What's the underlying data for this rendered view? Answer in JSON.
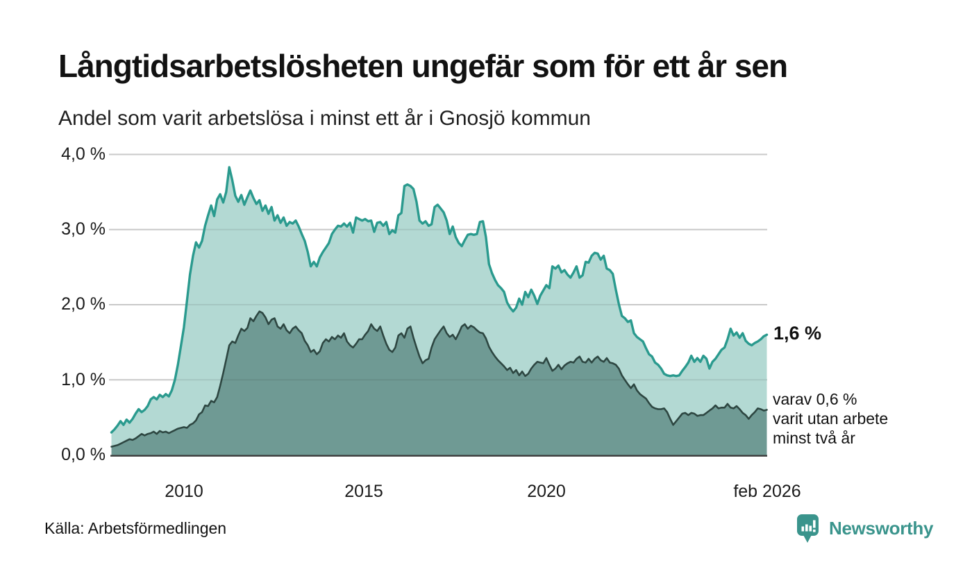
{
  "header": {
    "title": "Långtidsarbetslösheten ungefär som för ett år sen",
    "subtitle": "Andel som varit arbetslösa i minst ett år i Gnosjö kommun"
  },
  "chart_data": {
    "type": "area",
    "title": "Långtidsarbetslösheten ungefär som för ett år sen",
    "subtitle": "Andel som varit arbetslösa i minst ett år i Gnosjö kommun",
    "unit": "%",
    "x_start_year": 2008.0,
    "x_step_years": 0.08333,
    "x_ticks": [
      "2010",
      "2015",
      "2020",
      "feb 2026"
    ],
    "y_ticks": [
      "4,0 %",
      "3,0 %",
      "2,0 %",
      "1,0 %",
      "0,0 %"
    ],
    "ylim": [
      0,
      4
    ],
    "grid": "horizontal",
    "legend_position": "none",
    "series": [
      {
        "name": "Andel arbetslösa minst ett år",
        "line_color": "#2a9a8e",
        "fill_color": "#b3d9d3",
        "last_value": 1.6,
        "values": [
          0.3,
          0.34,
          0.39,
          0.45,
          0.4,
          0.47,
          0.43,
          0.48,
          0.55,
          0.61,
          0.57,
          0.6,
          0.65,
          0.74,
          0.77,
          0.74,
          0.8,
          0.77,
          0.81,
          0.78,
          0.86,
          1.0,
          1.2,
          1.45,
          1.7,
          2.05,
          2.4,
          2.65,
          2.83,
          2.76,
          2.85,
          3.05,
          3.19,
          3.32,
          3.18,
          3.4,
          3.47,
          3.36,
          3.5,
          3.83,
          3.66,
          3.45,
          3.37,
          3.46,
          3.33,
          3.43,
          3.52,
          3.42,
          3.34,
          3.39,
          3.25,
          3.32,
          3.21,
          3.3,
          3.12,
          3.19,
          3.09,
          3.16,
          3.05,
          3.1,
          3.08,
          3.12,
          3.04,
          2.94,
          2.85,
          2.7,
          2.51,
          2.57,
          2.51,
          2.63,
          2.7,
          2.76,
          2.82,
          2.94,
          3.0,
          3.05,
          3.04,
          3.08,
          3.04,
          3.09,
          2.96,
          3.16,
          3.14,
          3.12,
          3.14,
          3.11,
          3.12,
          2.97,
          3.09,
          3.1,
          3.05,
          3.1,
          2.94,
          2.99,
          2.96,
          3.19,
          3.22,
          3.58,
          3.6,
          3.58,
          3.54,
          3.37,
          3.12,
          3.08,
          3.11,
          3.05,
          3.07,
          3.3,
          3.33,
          3.28,
          3.23,
          3.12,
          2.94,
          3.04,
          2.9,
          2.82,
          2.78,
          2.86,
          2.93,
          2.94,
          2.93,
          2.94,
          3.1,
          3.11,
          2.9,
          2.54,
          2.42,
          2.33,
          2.26,
          2.22,
          2.17,
          2.03,
          1.96,
          1.91,
          1.96,
          2.08,
          2.0,
          2.17,
          2.1,
          2.2,
          2.12,
          2.01,
          2.12,
          2.19,
          2.26,
          2.22,
          2.51,
          2.48,
          2.52,
          2.43,
          2.46,
          2.4,
          2.36,
          2.43,
          2.51,
          2.36,
          2.39,
          2.57,
          2.56,
          2.65,
          2.69,
          2.68,
          2.6,
          2.65,
          2.48,
          2.46,
          2.41,
          2.2,
          2.01,
          1.85,
          1.82,
          1.77,
          1.79,
          1.62,
          1.57,
          1.54,
          1.51,
          1.42,
          1.34,
          1.31,
          1.23,
          1.2,
          1.15,
          1.08,
          1.06,
          1.05,
          1.06,
          1.05,
          1.06,
          1.12,
          1.17,
          1.23,
          1.32,
          1.24,
          1.29,
          1.24,
          1.32,
          1.28,
          1.15,
          1.24,
          1.28,
          1.34,
          1.4,
          1.43,
          1.54,
          1.68,
          1.59,
          1.63,
          1.56,
          1.62,
          1.52,
          1.48,
          1.46,
          1.49,
          1.51,
          1.54,
          1.58,
          1.6
        ]
      },
      {
        "name": "Andel arbetslösa minst två år",
        "line_color": "#2d4641",
        "fill_color": "#6f9a94",
        "last_value": 0.6,
        "values": [
          0.11,
          0.12,
          0.13,
          0.15,
          0.17,
          0.19,
          0.21,
          0.2,
          0.22,
          0.25,
          0.28,
          0.26,
          0.28,
          0.29,
          0.31,
          0.28,
          0.32,
          0.3,
          0.31,
          0.29,
          0.31,
          0.33,
          0.35,
          0.36,
          0.37,
          0.36,
          0.4,
          0.42,
          0.46,
          0.54,
          0.57,
          0.66,
          0.65,
          0.72,
          0.7,
          0.77,
          0.92,
          1.09,
          1.27,
          1.46,
          1.51,
          1.49,
          1.59,
          1.68,
          1.65,
          1.69,
          1.82,
          1.78,
          1.85,
          1.91,
          1.89,
          1.83,
          1.74,
          1.8,
          1.82,
          1.71,
          1.68,
          1.74,
          1.66,
          1.62,
          1.68,
          1.71,
          1.66,
          1.62,
          1.52,
          1.46,
          1.37,
          1.4,
          1.34,
          1.38,
          1.49,
          1.54,
          1.51,
          1.57,
          1.54,
          1.59,
          1.56,
          1.62,
          1.51,
          1.46,
          1.43,
          1.48,
          1.54,
          1.54,
          1.6,
          1.65,
          1.74,
          1.68,
          1.65,
          1.71,
          1.59,
          1.48,
          1.4,
          1.37,
          1.43,
          1.59,
          1.62,
          1.56,
          1.68,
          1.71,
          1.56,
          1.43,
          1.31,
          1.22,
          1.26,
          1.28,
          1.43,
          1.54,
          1.6,
          1.66,
          1.71,
          1.62,
          1.57,
          1.6,
          1.54,
          1.62,
          1.71,
          1.74,
          1.68,
          1.72,
          1.7,
          1.66,
          1.63,
          1.62,
          1.55,
          1.44,
          1.37,
          1.31,
          1.26,
          1.22,
          1.18,
          1.13,
          1.16,
          1.09,
          1.13,
          1.06,
          1.11,
          1.05,
          1.08,
          1.15,
          1.2,
          1.24,
          1.23,
          1.22,
          1.29,
          1.2,
          1.12,
          1.15,
          1.2,
          1.14,
          1.19,
          1.22,
          1.24,
          1.23,
          1.28,
          1.31,
          1.24,
          1.23,
          1.28,
          1.23,
          1.28,
          1.31,
          1.26,
          1.24,
          1.29,
          1.23,
          1.22,
          1.2,
          1.15,
          1.06,
          1.0,
          0.94,
          0.89,
          0.94,
          0.86,
          0.81,
          0.78,
          0.75,
          0.69,
          0.64,
          0.62,
          0.61,
          0.61,
          0.62,
          0.57,
          0.48,
          0.4,
          0.45,
          0.5,
          0.55,
          0.56,
          0.53,
          0.56,
          0.55,
          0.52,
          0.53,
          0.53,
          0.56,
          0.59,
          0.62,
          0.66,
          0.62,
          0.63,
          0.63,
          0.68,
          0.63,
          0.62,
          0.65,
          0.61,
          0.56,
          0.53,
          0.48,
          0.53,
          0.57,
          0.62,
          0.61,
          0.59,
          0.6
        ]
      }
    ],
    "annotations": {
      "latest_value_label": "1,6 %",
      "note_lines": [
        "varav 0,6 %",
        "varit utan arbete",
        "minst två år"
      ]
    },
    "colors": {
      "gridline": "#dcdcdc",
      "axis_line": "#3a3a3a",
      "text": "#1a1a1a"
    }
  },
  "footer": {
    "source": "Källa: Arbetsförmedlingen",
    "brand": "Newsworthy",
    "brand_color": "#3a948c"
  }
}
